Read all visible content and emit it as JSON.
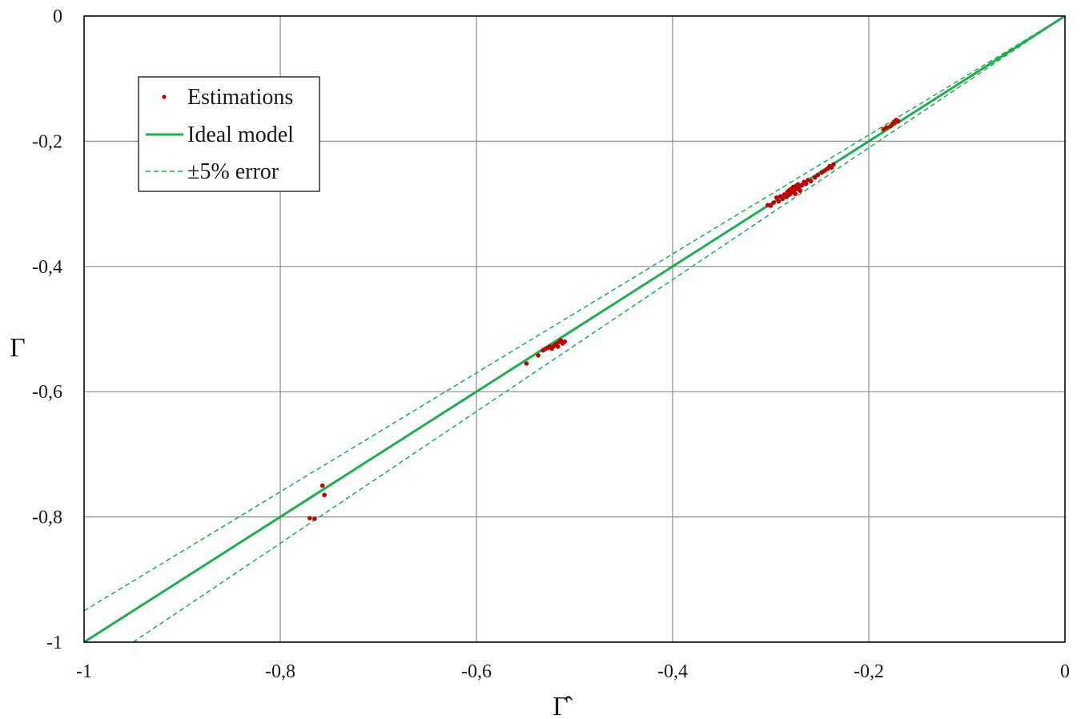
{
  "chart_data": {
    "type": "scatter",
    "xlabel": "Γ̂",
    "ylabel": "Γ",
    "xlim": [
      -1,
      0
    ],
    "ylim": [
      -1,
      0
    ],
    "grid": true,
    "legend_position": "top-left",
    "x_ticks": [
      {
        "value": -1,
        "label": "-1"
      },
      {
        "value": -0.8,
        "label": "-0,8"
      },
      {
        "value": -0.6,
        "label": "-0,6"
      },
      {
        "value": -0.4,
        "label": "-0,4"
      },
      {
        "value": -0.2,
        "label": "-0,2"
      },
      {
        "value": 0,
        "label": "0"
      }
    ],
    "y_ticks": [
      {
        "value": 0,
        "label": "0"
      },
      {
        "value": -0.2,
        "label": "-0,2"
      },
      {
        "value": -0.4,
        "label": "-0,4"
      },
      {
        "value": -0.6,
        "label": "-0,6"
      },
      {
        "value": -0.8,
        "label": "-0,8"
      },
      {
        "value": -1,
        "label": "-1"
      }
    ],
    "colors": {
      "estimations": "#c00000",
      "ideal": "#1fae4f",
      "error": "#1fae4f",
      "grid": "#8c8c8c",
      "frame": "#000000"
    },
    "legend": {
      "estimations": "Estimations",
      "ideal": "Ideal model",
      "error": "±5% error"
    },
    "ideal_line": [
      [
        -1,
        -1
      ],
      [
        0,
        0
      ]
    ],
    "upper_error_line": [
      [
        -1,
        -0.95
      ],
      [
        0,
        0
      ]
    ],
    "lower_error_line": [
      [
        -0.95,
        -1
      ],
      [
        0,
        0
      ]
    ],
    "estimations": [
      [
        -0.77,
        -0.802
      ],
      [
        -0.765,
        -0.803
      ],
      [
        -0.757,
        -0.75
      ],
      [
        -0.755,
        -0.765
      ],
      [
        -0.549,
        -0.555
      ],
      [
        -0.537,
        -0.542
      ],
      [
        -0.532,
        -0.534
      ],
      [
        -0.53,
        -0.532
      ],
      [
        -0.527,
        -0.53
      ],
      [
        -0.525,
        -0.528
      ],
      [
        -0.523,
        -0.531
      ],
      [
        -0.521,
        -0.527
      ],
      [
        -0.519,
        -0.524
      ],
      [
        -0.517,
        -0.528
      ],
      [
        -0.516,
        -0.521
      ],
      [
        -0.514,
        -0.518
      ],
      [
        -0.512,
        -0.523
      ],
      [
        -0.51,
        -0.52
      ],
      [
        -0.303,
        -0.302
      ],
      [
        -0.3,
        -0.303
      ],
      [
        -0.297,
        -0.298
      ],
      [
        -0.294,
        -0.29
      ],
      [
        -0.292,
        -0.296
      ],
      [
        -0.29,
        -0.288
      ],
      [
        -0.288,
        -0.292
      ],
      [
        -0.286,
        -0.285
      ],
      [
        -0.284,
        -0.289
      ],
      [
        -0.283,
        -0.281
      ],
      [
        -0.282,
        -0.286
      ],
      [
        -0.281,
        -0.278
      ],
      [
        -0.28,
        -0.284
      ],
      [
        -0.279,
        -0.276
      ],
      [
        -0.278,
        -0.281
      ],
      [
        -0.277,
        -0.273
      ],
      [
        -0.276,
        -0.279
      ],
      [
        -0.275,
        -0.284
      ],
      [
        -0.274,
        -0.271
      ],
      [
        -0.273,
        -0.276
      ],
      [
        -0.272,
        -0.269
      ],
      [
        -0.271,
        -0.274
      ],
      [
        -0.27,
        -0.279
      ],
      [
        -0.268,
        -0.27
      ],
      [
        -0.266,
        -0.265
      ],
      [
        -0.264,
        -0.268
      ],
      [
        -0.262,
        -0.262
      ],
      [
        -0.259,
        -0.264
      ],
      [
        -0.255,
        -0.258
      ],
      [
        -0.252,
        -0.254
      ],
      [
        -0.248,
        -0.25
      ],
      [
        -0.245,
        -0.247
      ],
      [
        -0.242,
        -0.244
      ],
      [
        -0.24,
        -0.24
      ],
      [
        -0.238,
        -0.242
      ],
      [
        -0.236,
        -0.237
      ],
      [
        -0.185,
        -0.181
      ],
      [
        -0.182,
        -0.178
      ],
      [
        -0.178,
        -0.176
      ],
      [
        -0.176,
        -0.172
      ],
      [
        -0.174,
        -0.17
      ],
      [
        -0.172,
        -0.166
      ],
      [
        -0.17,
        -0.168
      ]
    ]
  }
}
